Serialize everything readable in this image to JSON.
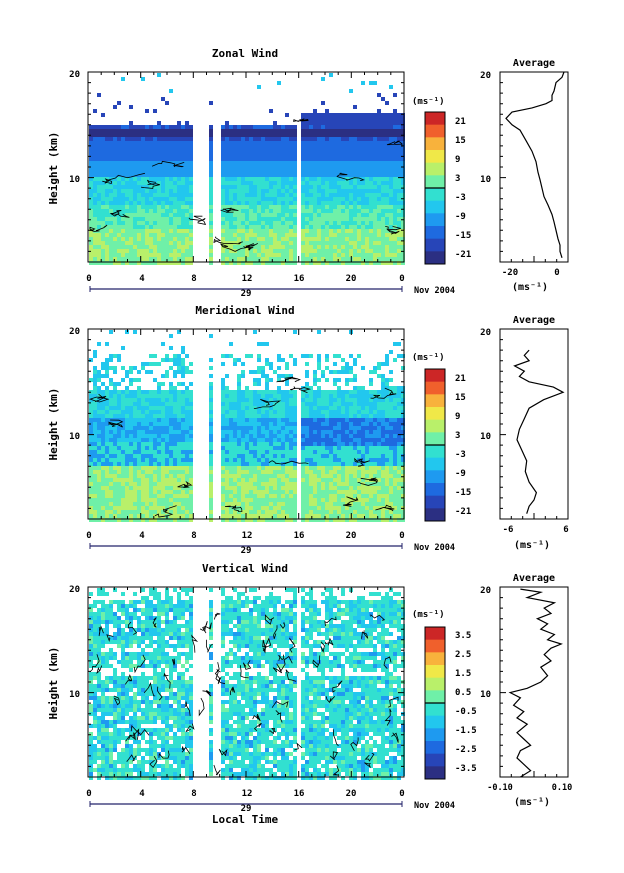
{
  "chart_data": [
    {
      "type": "heatmap",
      "title": "Zonal Wind",
      "ylabel": "Height (km)",
      "x_ticks": [
        "0",
        "4",
        "8",
        "12",
        "16",
        "20",
        "0"
      ],
      "day_label": "29",
      "date_label": "Nov 2004",
      "ylim": [
        2,
        20
      ],
      "y_ticks": [
        "20",
        "10"
      ],
      "colorbar": {
        "unit": "(ms⁻¹)",
        "ticks": [
          "21",
          "15",
          "9",
          "3",
          "-3",
          "-9",
          "-15",
          "-21"
        ]
      },
      "profile": {
        "title": "Average",
        "xlabel": "(ms⁻¹)",
        "x_ticks": [
          "-20",
          "0"
        ],
        "xlim": [
          -28,
          6
        ],
        "points": [
          [
            4,
            20
          ],
          [
            3,
            19.5
          ],
          [
            0,
            19
          ],
          [
            -1,
            18.2
          ],
          [
            -2,
            17.8
          ],
          [
            -2,
            17.3
          ],
          [
            -5,
            17
          ],
          [
            -12,
            16.6
          ],
          [
            -22,
            16.2
          ],
          [
            -25,
            15.6
          ],
          [
            -22,
            15
          ],
          [
            -18,
            14.5
          ],
          [
            -15,
            13.5
          ],
          [
            -12,
            12.5
          ],
          [
            -10,
            11.5
          ],
          [
            -9,
            10.5
          ],
          [
            -8,
            9.8
          ],
          [
            -7,
            9
          ],
          [
            -6,
            8.2
          ],
          [
            -4,
            7.4
          ],
          [
            -2,
            6.5
          ],
          [
            -1,
            5.8
          ],
          [
            0,
            5
          ],
          [
            1,
            4.2
          ],
          [
            2,
            3.6
          ],
          [
            2,
            3
          ],
          [
            3,
            2.4
          ]
        ]
      }
    },
    {
      "type": "heatmap",
      "title": "Meridional Wind",
      "ylabel": "Height (km)",
      "x_ticks": [
        "0",
        "4",
        "8",
        "12",
        "16",
        "20",
        "0"
      ],
      "day_label": "29",
      "date_label": "Nov 2004",
      "ylim": [
        2,
        20
      ],
      "y_ticks": [
        "20",
        "10"
      ],
      "colorbar": {
        "unit": "(ms⁻¹)",
        "ticks": [
          "21",
          "15",
          "9",
          "3",
          "-3",
          "-9",
          "-15",
          "-21"
        ]
      },
      "profile": {
        "title": "Average",
        "xlabel": "(ms⁻¹)",
        "x_ticks": [
          "-6",
          "6"
        ],
        "xlim": [
          -7,
          7
        ],
        "points": [
          [
            -1,
            18
          ],
          [
            -2,
            17.5
          ],
          [
            -1,
            17
          ],
          [
            -4,
            16.5
          ],
          [
            -2,
            16
          ],
          [
            -3,
            15.5
          ],
          [
            -1,
            15
          ],
          [
            1,
            14.8
          ],
          [
            4,
            14.5
          ],
          [
            6,
            14
          ],
          [
            2,
            13.3
          ],
          [
            -1,
            12.5
          ],
          [
            -2,
            11.5
          ],
          [
            -3,
            10.5
          ],
          [
            -3.5,
            9.5
          ],
          [
            -2.5,
            8.5
          ],
          [
            -1.5,
            7.5
          ],
          [
            -1.8,
            6.5
          ],
          [
            -1,
            5.5
          ],
          [
            0.5,
            4.5
          ],
          [
            0,
            3.8
          ],
          [
            -1,
            3.2
          ],
          [
            -1.5,
            2.5
          ]
        ]
      }
    },
    {
      "type": "heatmap",
      "title": "Vertical Wind",
      "ylabel": "Height (km)",
      "xlabel": "Local Time",
      "x_ticks": [
        "0",
        "4",
        "8",
        "12",
        "16",
        "20",
        "0"
      ],
      "day_label": "29",
      "date_label": "Nov 2004",
      "ylim": [
        2,
        20
      ],
      "y_ticks": [
        "20",
        "10"
      ],
      "colorbar": {
        "unit": "(ms⁻¹)",
        "ticks": [
          "3.5",
          "2.5",
          "1.5",
          "0.5",
          "-0.5",
          "-1.5",
          "-2.5",
          "-3.5"
        ]
      },
      "profile": {
        "title": "Average",
        "xlabel": "(ms⁻¹)",
        "x_ticks": [
          "-0.10",
          "0.10"
        ],
        "xlim": [
          -0.1,
          0.1
        ],
        "points": [
          [
            -0.04,
            19.8
          ],
          [
            0.02,
            19.5
          ],
          [
            -0.02,
            19
          ],
          [
            0.06,
            18.5
          ],
          [
            0.03,
            18
          ],
          [
            0.05,
            17.5
          ],
          [
            0.01,
            17
          ],
          [
            0.04,
            16.5
          ],
          [
            0.02,
            16
          ],
          [
            0.06,
            15.5
          ],
          [
            0.04,
            15
          ],
          [
            0.08,
            14.6
          ],
          [
            0.05,
            14.2
          ],
          [
            0.03,
            13.6
          ],
          [
            0.05,
            13
          ],
          [
            0.02,
            12.4
          ],
          [
            0.04,
            11.6
          ],
          [
            0.02,
            11
          ],
          [
            -0.02,
            10.4
          ],
          [
            -0.07,
            10
          ],
          [
            -0.04,
            9.5
          ],
          [
            -0.06,
            8.8
          ],
          [
            -0.03,
            8.2
          ],
          [
            -0.05,
            7.6
          ],
          [
            -0.02,
            7
          ],
          [
            -0.05,
            6.2
          ],
          [
            -0.03,
            5.6
          ],
          [
            -0.01,
            5
          ],
          [
            -0.04,
            4.5
          ],
          [
            -0.05,
            3.8
          ],
          [
            -0.03,
            3.2
          ],
          [
            -0.01,
            2.6
          ],
          [
            -0.04,
            2
          ]
        ]
      }
    }
  ]
}
